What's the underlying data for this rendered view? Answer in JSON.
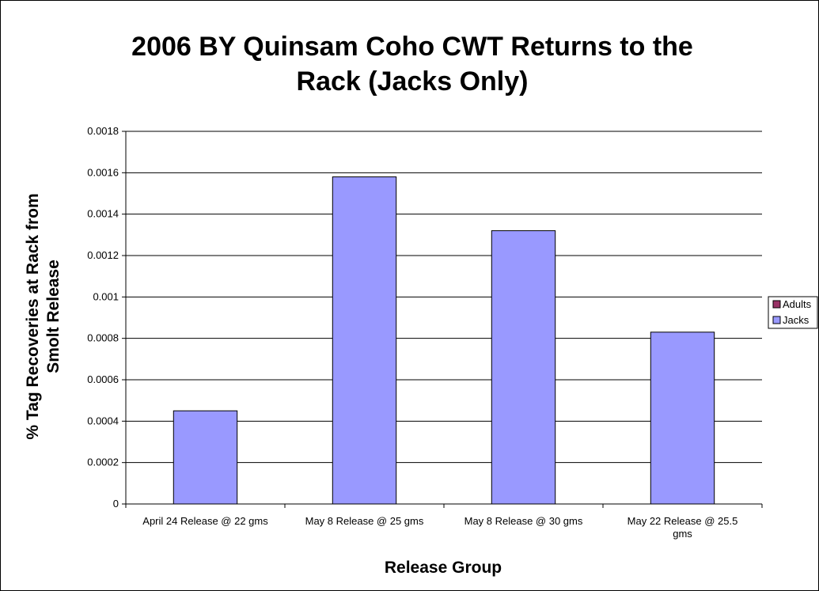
{
  "chart_data": {
    "type": "bar",
    "title_lines": [
      "2006 BY Quinsam Coho CWT Returns to the",
      "Rack (Jacks Only)"
    ],
    "xlabel": "Release Group",
    "ylabel_lines": [
      "% Tag Recoveries at Rack from",
      "Smolt Release"
    ],
    "categories": [
      [
        "April 24 Release @ 22 gms"
      ],
      [
        "May 8 Release @ 25 gms"
      ],
      [
        "May 8 Release @ 30 gms"
      ],
      [
        "May 22 Release @ 25.5",
        "gms"
      ]
    ],
    "series": [
      {
        "name": "Adults",
        "values": [
          0,
          0,
          0,
          0
        ],
        "color": "#993366"
      },
      {
        "name": "Jacks",
        "values": [
          0.00045,
          0.00158,
          0.00132,
          0.00083
        ],
        "color": "#9999ff"
      }
    ],
    "ylim": [
      0,
      0.0018
    ],
    "yticks": [
      "0",
      "0.0002",
      "0.0004",
      "0.0006",
      "0.0008",
      "0.001",
      "0.0012",
      "0.0014",
      "0.0016",
      "0.0018"
    ],
    "grid": true,
    "legend_position": "right"
  }
}
